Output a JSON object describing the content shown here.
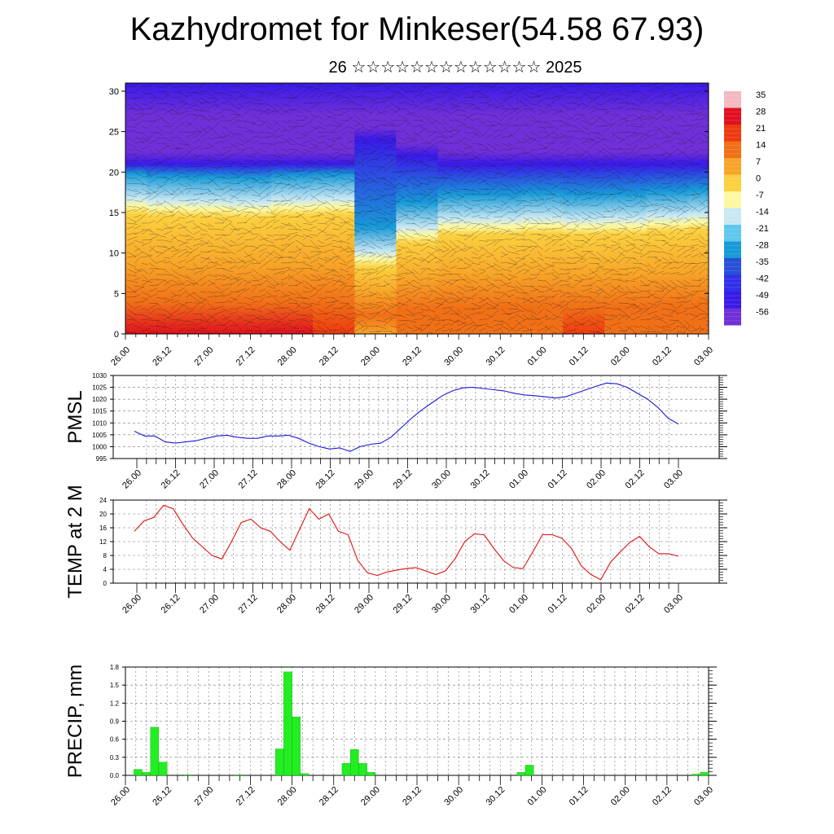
{
  "page": {
    "title": "Kazhydromet for Minkeser(54.58 67.93)",
    "subtitle": "26 ☆☆☆☆☆☆☆☆☆☆☆☆☆ 2025"
  },
  "colors": {
    "pmsl_line": "#1a1ad6",
    "temp_line": "#e01010",
    "precip_bar": "#22ee22",
    "axis": "#000000"
  },
  "x_tick_labels": [
    "26.00",
    "26.12",
    "27.00",
    "27.12",
    "28.00",
    "28.12",
    "29.00",
    "29.12",
    "30.00",
    "30.12",
    "01.00",
    "01.12",
    "02.00",
    "02.12",
    "03.00"
  ],
  "chart_data": [
    {
      "type": "heatmap",
      "name": "cross-section",
      "x_labels": [
        "26.00",
        "26.12",
        "27.00",
        "27.12",
        "28.00",
        "28.12",
        "29.00",
        "29.12",
        "30.00",
        "30.12",
        "01.00",
        "01.12",
        "02.00",
        "02.12",
        "03.00"
      ],
      "y_ticks": [
        0,
        5,
        10,
        15,
        20,
        25,
        30
      ],
      "ylim": [
        0,
        31
      ],
      "colorbar": {
        "labels": [
          "35",
          "28",
          "21",
          "14",
          "7",
          "0",
          "-7",
          "-14",
          "-21",
          "-28",
          "-35",
          "-42",
          "-49",
          "-56"
        ],
        "colors": [
          "#f4b8c0",
          "#e01020",
          "#ee3a10",
          "#f07018",
          "#f7a428",
          "#fbd040",
          "#fdf8a0",
          "#c8e8f4",
          "#5fc8ee",
          "#189ad8",
          "#2850d8",
          "#3030ea",
          "#3a1ae8",
          "#7030d8"
        ]
      },
      "freezing_level_km": [
        15.8,
        15.5,
        15.4,
        15.3,
        15.6,
        15.7,
        9.2,
        12.2,
        13.2,
        13.2,
        13.4,
        13.2,
        13.3,
        13.6,
        13.8
      ],
      "tropopause_km": [
        21,
        21,
        21,
        21,
        21,
        21,
        24,
        22,
        21,
        21,
        21,
        21,
        21,
        21,
        21
      ],
      "surface_temp_c": [
        28,
        29,
        24,
        22,
        23,
        18,
        10,
        11,
        14,
        15,
        17,
        18,
        15,
        14,
        13
      ]
    },
    {
      "type": "line",
      "name": "PMSL",
      "ylabel": "PMSL",
      "ylim": [
        995,
        1030
      ],
      "y_ticks": [
        995,
        1000,
        1005,
        1010,
        1015,
        1020,
        1025,
        1030
      ],
      "x_labels": [
        "26.00",
        "26.12",
        "27.00",
        "27.12",
        "28.00",
        "28.12",
        "29.00",
        "29.12",
        "30.00",
        "30.12",
        "01.00",
        "01.12",
        "02.00",
        "02.12",
        "03.00"
      ],
      "values": [
        1006.5,
        1004.5,
        1004.5,
        1002,
        1001.5,
        1002,
        1002.5,
        1003.5,
        1004.5,
        1004.8,
        1004,
        1003.5,
        1003.5,
        1004.5,
        1004.5,
        1004.8,
        1003.5,
        1001.5,
        1000,
        999,
        999.5,
        998,
        1000,
        1001,
        1001.5,
        1004,
        1008,
        1012,
        1015.5,
        1018.5,
        1021.5,
        1023.5,
        1024.8,
        1025,
        1024.5,
        1024,
        1023.5,
        1022.5,
        1021.8,
        1021.5,
        1021,
        1020.5,
        1021,
        1022.5,
        1024,
        1025.5,
        1026.8,
        1026.5,
        1025,
        1022.5,
        1020,
        1016.5,
        1012,
        1009.5
      ]
    },
    {
      "type": "line",
      "name": "TEMP at 2 M",
      "ylabel": "TEMP at 2 M",
      "ylim": [
        0,
        24
      ],
      "y_ticks": [
        0,
        4,
        8,
        12,
        16,
        20,
        24
      ],
      "x_labels": [
        "26.00",
        "26.12",
        "27.00",
        "27.12",
        "28.00",
        "28.12",
        "29.00",
        "29.12",
        "30.00",
        "30.12",
        "01.00",
        "01.12",
        "02.00",
        "02.12",
        "03.00"
      ],
      "values": [
        15,
        18,
        19,
        22.5,
        21.5,
        17,
        13,
        10.5,
        8,
        7,
        12,
        17.5,
        18.5,
        16,
        15,
        12,
        9.5,
        15.5,
        21.5,
        18.5,
        20,
        15,
        14,
        6.5,
        3,
        2.2,
        3.2,
        3.8,
        4.2,
        4.5,
        3.5,
        2.5,
        3.5,
        7,
        12,
        14.2,
        14,
        10,
        6.5,
        4.5,
        4.2,
        9,
        14,
        14,
        13,
        10,
        5,
        2.5,
        1,
        6,
        9,
        11.8,
        13.5,
        10.5,
        8.5,
        8.5,
        7.8
      ]
    },
    {
      "type": "bar",
      "name": "PRECIP",
      "ylabel": "PRECIP, mm",
      "ylim": [
        0,
        1.8
      ],
      "y_ticks": [
        "0.0",
        "0.3",
        "0.6",
        "0.9",
        "1.2",
        "1.5",
        "1.8"
      ],
      "x_labels": [
        "26.00",
        "26.12",
        "27.00",
        "27.12",
        "28.00",
        "28.12",
        "29.00",
        "29.12",
        "30.00",
        "30.12",
        "01.00",
        "01.12",
        "02.00",
        "02.12",
        "03.00"
      ],
      "values": [
        0,
        0.1,
        0.05,
        0.8,
        0.22,
        0,
        0,
        0.01,
        0,
        0,
        0,
        0,
        0,
        0.01,
        0,
        0,
        0,
        0,
        0.44,
        1.72,
        0.97,
        0.03,
        0,
        0,
        0,
        0,
        0.2,
        0.43,
        0.2,
        0.05,
        0,
        0,
        0,
        0,
        0,
        0,
        0,
        0,
        0,
        0,
        0,
        0,
        0,
        0,
        0,
        0,
        0,
        0.05,
        0.17,
        0,
        0,
        0,
        0,
        0,
        0,
        0,
        0,
        0,
        0,
        0,
        0,
        0,
        0,
        0,
        0,
        0,
        0,
        0,
        0.02,
        0.05
      ]
    }
  ]
}
